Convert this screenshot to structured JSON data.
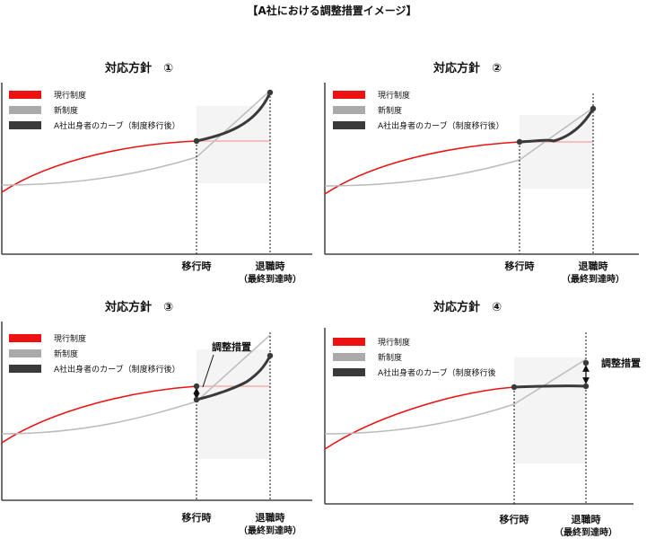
{
  "page": {
    "title": "【A社における調整措置イメージ】"
  },
  "legend": {
    "current": "現行制度",
    "new": "新制度",
    "company": "A社出身者のカーブ（制度移行後）",
    "company_short": "A社出身者のカーブ（制度移行後"
  },
  "axis": {
    "transition": "移行時",
    "retire_1": "退職時",
    "retire_2": "（最終到達時）"
  },
  "colors": {
    "current": "#ee1111",
    "new": "#aaaaaa",
    "company": "#3a3a3a",
    "shade": "#f4f4f4"
  },
  "panels": [
    {
      "id": 1,
      "title": "対応方針　①",
      "adjust_label": ""
    },
    {
      "id": 2,
      "title": "対応方針　②",
      "adjust_label": ""
    },
    {
      "id": 3,
      "title": "対応方針　③",
      "adjust_label": "調整措置"
    },
    {
      "id": 4,
      "title": "対応方針　④",
      "adjust_label": "調整措置"
    }
  ]
}
